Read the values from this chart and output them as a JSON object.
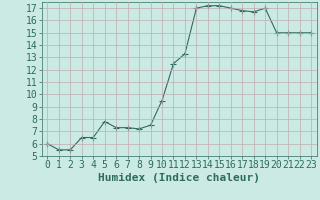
{
  "x": [
    0,
    1,
    2,
    3,
    4,
    5,
    6,
    7,
    8,
    9,
    10,
    11,
    12,
    13,
    14,
    15,
    16,
    17,
    18,
    19,
    20,
    21,
    22,
    23
  ],
  "y": [
    6,
    5.5,
    5.5,
    6.5,
    6.5,
    7.8,
    7.3,
    7.3,
    7.2,
    7.5,
    9.5,
    12.5,
    13.3,
    17.0,
    17.2,
    17.2,
    17.0,
    16.8,
    16.7,
    17.0,
    15.0,
    15.0,
    15.0,
    15.0
  ],
  "line_color": "#2e6b5e",
  "marker": "+",
  "marker_size": 4,
  "bg_color": "#cceae4",
  "grid_color": "#c0adb0",
  "xlabel": "Humidex (Indice chaleur)",
  "ylabel": "",
  "ylim": [
    5,
    17.5
  ],
  "xlim": [
    -0.5,
    23.5
  ],
  "yticks": [
    5,
    6,
    7,
    8,
    9,
    10,
    11,
    12,
    13,
    14,
    15,
    16,
    17
  ],
  "xticks": [
    0,
    1,
    2,
    3,
    4,
    5,
    6,
    7,
    8,
    9,
    10,
    11,
    12,
    13,
    14,
    15,
    16,
    17,
    18,
    19,
    20,
    21,
    22,
    23
  ],
  "tick_color": "#2e6b5e",
  "xlabel_fontsize": 8,
  "tick_fontsize": 7
}
